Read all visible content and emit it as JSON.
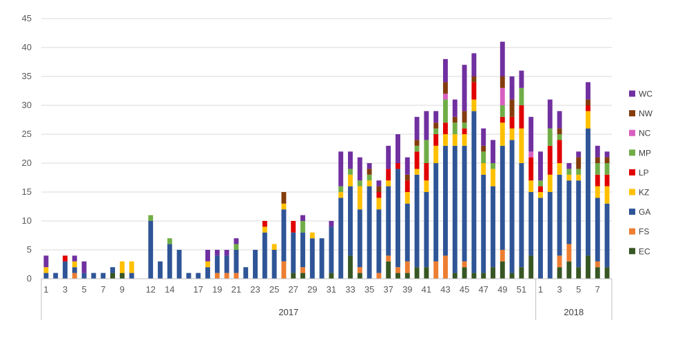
{
  "chart_data": {
    "type": "bar",
    "stacked": true,
    "ylim": [
      0,
      45
    ],
    "yticks": [
      0,
      5,
      10,
      15,
      20,
      25,
      30,
      35,
      40,
      45
    ],
    "grid": true,
    "legend_position": "right",
    "groups": [
      {
        "label": "2017",
        "count": 52
      },
      {
        "label": "2018",
        "count": 8
      }
    ],
    "categories": [
      "1",
      "2",
      "3",
      "4",
      "5",
      "6",
      "7",
      "8",
      "9",
      "10",
      "11",
      "12",
      "13",
      "14",
      "15",
      "16",
      "17",
      "18",
      "19",
      "20",
      "21",
      "22",
      "23",
      "24",
      "25",
      "26",
      "27",
      "28",
      "29",
      "30",
      "31",
      "32",
      "33",
      "34",
      "35",
      "36",
      "37",
      "38",
      "39",
      "40",
      "41",
      "42",
      "43",
      "44",
      "45",
      "46",
      "47",
      "48",
      "49",
      "50",
      "51",
      "52",
      "1",
      "2",
      "3",
      "4",
      "5",
      "6",
      "7",
      "8"
    ],
    "x_tick_labels": [
      {
        "index": 0,
        "label": "1"
      },
      {
        "index": 2,
        "label": "3"
      },
      {
        "index": 4,
        "label": "5"
      },
      {
        "index": 6,
        "label": "7"
      },
      {
        "index": 8,
        "label": "9"
      },
      {
        "index": 11,
        "label": "12"
      },
      {
        "index": 13,
        "label": "14"
      },
      {
        "index": 16,
        "label": "17"
      },
      {
        "index": 18,
        "label": "19"
      },
      {
        "index": 20,
        "label": "21"
      },
      {
        "index": 22,
        "label": "23"
      },
      {
        "index": 24,
        "label": "25"
      },
      {
        "index": 26,
        "label": "27"
      },
      {
        "index": 28,
        "label": "29"
      },
      {
        "index": 30,
        "label": "31"
      },
      {
        "index": 32,
        "label": "33"
      },
      {
        "index": 34,
        "label": "35"
      },
      {
        "index": 36,
        "label": "37"
      },
      {
        "index": 38,
        "label": "39"
      },
      {
        "index": 40,
        "label": "41"
      },
      {
        "index": 42,
        "label": "43"
      },
      {
        "index": 44,
        "label": "45"
      },
      {
        "index": 46,
        "label": "47"
      },
      {
        "index": 48,
        "label": "49"
      },
      {
        "index": 50,
        "label": "51"
      },
      {
        "index": 52,
        "label": "1"
      },
      {
        "index": 54,
        "label": "3"
      },
      {
        "index": 56,
        "label": "5"
      },
      {
        "index": 58,
        "label": "7"
      }
    ],
    "series": [
      {
        "name": "EC",
        "color": "#375623",
        "values": [
          0,
          0,
          0,
          0,
          0,
          0,
          0,
          1,
          1,
          0,
          0,
          0,
          0,
          0,
          0,
          0,
          0,
          0,
          0,
          0,
          0,
          0,
          0,
          0,
          0,
          0,
          1,
          1,
          0,
          0,
          1,
          0,
          4,
          1,
          0,
          0,
          3,
          1,
          1,
          2,
          2,
          0,
          0,
          1,
          2,
          1,
          1,
          2,
          3,
          1,
          2,
          4,
          0,
          0,
          2,
          3,
          2,
          4,
          2,
          2
        ]
      },
      {
        "name": "FS",
        "color": "#ED7D31",
        "values": [
          0,
          0,
          0,
          1,
          0,
          0,
          0,
          0,
          0,
          0,
          0,
          0,
          0,
          0,
          0,
          0,
          0,
          0,
          1,
          1,
          1,
          0,
          0,
          0,
          0,
          3,
          0,
          1,
          0,
          0,
          0,
          0,
          0,
          1,
          0,
          1,
          1,
          1,
          2,
          0,
          0,
          3,
          4,
          0,
          1,
          0,
          0,
          0,
          2,
          0,
          0,
          0,
          0,
          0,
          2,
          3,
          0,
          0,
          1,
          0
        ]
      },
      {
        "name": "GA",
        "color": "#2F5597",
        "values": [
          1,
          1,
          3,
          1,
          1,
          1,
          1,
          1,
          0,
          1,
          0,
          10,
          3,
          6,
          5,
          1,
          1,
          2,
          3,
          3,
          4,
          2,
          5,
          8,
          5,
          9,
          7,
          6,
          7,
          7,
          8,
          14,
          12,
          10,
          16,
          11,
          12,
          17,
          10,
          16,
          13,
          17,
          19,
          22,
          20,
          28,
          17,
          14,
          18,
          23,
          18,
          11,
          14,
          15,
          14,
          11,
          15,
          22,
          11,
          11
        ]
      },
      {
        "name": "KZ",
        "color": "#FFC000",
        "values": [
          1,
          0,
          0,
          1,
          0,
          0,
          0,
          0,
          2,
          2,
          0,
          0,
          0,
          0,
          0,
          0,
          0,
          1,
          0,
          0,
          0,
          0,
          0,
          1,
          1,
          1,
          0,
          0,
          1,
          0,
          0,
          1,
          2,
          4,
          1,
          2,
          1,
          0,
          2,
          1,
          2,
          3,
          2,
          2,
          2,
          2,
          2,
          3,
          4,
          2,
          6,
          2,
          1,
          3,
          2,
          1,
          1,
          3,
          2,
          3
        ]
      },
      {
        "name": "LP",
        "color": "#E00000",
        "values": [
          0,
          0,
          1,
          0,
          0,
          0,
          0,
          0,
          0,
          0,
          0,
          0,
          0,
          0,
          0,
          0,
          0,
          0,
          0,
          0,
          0,
          0,
          0,
          1,
          0,
          0,
          2,
          0,
          0,
          0,
          0,
          0,
          0,
          0,
          0,
          1,
          2,
          1,
          2,
          3,
          3,
          2,
          2,
          0,
          1,
          3,
          0,
          0,
          1,
          2,
          4,
          4,
          1,
          5,
          4,
          0,
          0,
          1,
          2,
          2
        ]
      },
      {
        "name": "MP",
        "color": "#70AD47",
        "values": [
          0,
          0,
          0,
          0,
          0,
          0,
          0,
          0,
          0,
          0,
          0,
          1,
          0,
          1,
          0,
          0,
          0,
          0,
          0,
          0,
          1,
          0,
          0,
          0,
          0,
          0,
          0,
          2,
          0,
          0,
          0,
          1,
          1,
          1,
          1,
          0,
          0,
          0,
          0,
          1,
          4,
          1,
          4,
          2,
          1,
          0,
          2,
          1,
          2,
          0,
          3,
          0,
          1,
          3,
          1,
          1,
          1,
          0,
          2,
          2
        ]
      },
      {
        "name": "NC",
        "color": "#D85FC1",
        "values": [
          0,
          0,
          0,
          0,
          0,
          0,
          0,
          0,
          0,
          0,
          0,
          0,
          0,
          0,
          0,
          0,
          0,
          0,
          0,
          0,
          0,
          0,
          0,
          0,
          0,
          0,
          0,
          0,
          0,
          0,
          0,
          0,
          0,
          0,
          0,
          0,
          0,
          0,
          0,
          0,
          0,
          0,
          1,
          0,
          0,
          0,
          0,
          0,
          3,
          0,
          0,
          1,
          0,
          0,
          0,
          0,
          0,
          0,
          0,
          0
        ]
      },
      {
        "name": "NW",
        "color": "#843C0C",
        "values": [
          0,
          0,
          0,
          0,
          0,
          0,
          0,
          0,
          0,
          0,
          0,
          0,
          0,
          0,
          0,
          0,
          0,
          0,
          0,
          0,
          0,
          0,
          0,
          0,
          0,
          2,
          0,
          0,
          0,
          0,
          0,
          0,
          0,
          0,
          1,
          1,
          0,
          0,
          1,
          1,
          0,
          1,
          2,
          1,
          2,
          1,
          1,
          0,
          2,
          3,
          0,
          0,
          0,
          0,
          1,
          0,
          2,
          1,
          1,
          1
        ]
      },
      {
        "name": "WC",
        "color": "#7030A0",
        "values": [
          2,
          0,
          0,
          1,
          2,
          0,
          0,
          0,
          0,
          0,
          0,
          0,
          0,
          0,
          0,
          0,
          0,
          2,
          1,
          1,
          1,
          0,
          0,
          0,
          0,
          0,
          0,
          1,
          0,
          0,
          1,
          6,
          3,
          4,
          1,
          1,
          4,
          5,
          3,
          4,
          5,
          2,
          4,
          3,
          8,
          4,
          3,
          4,
          6,
          4,
          3,
          6,
          5,
          5,
          3,
          1,
          1,
          3,
          2,
          1
        ]
      }
    ]
  }
}
